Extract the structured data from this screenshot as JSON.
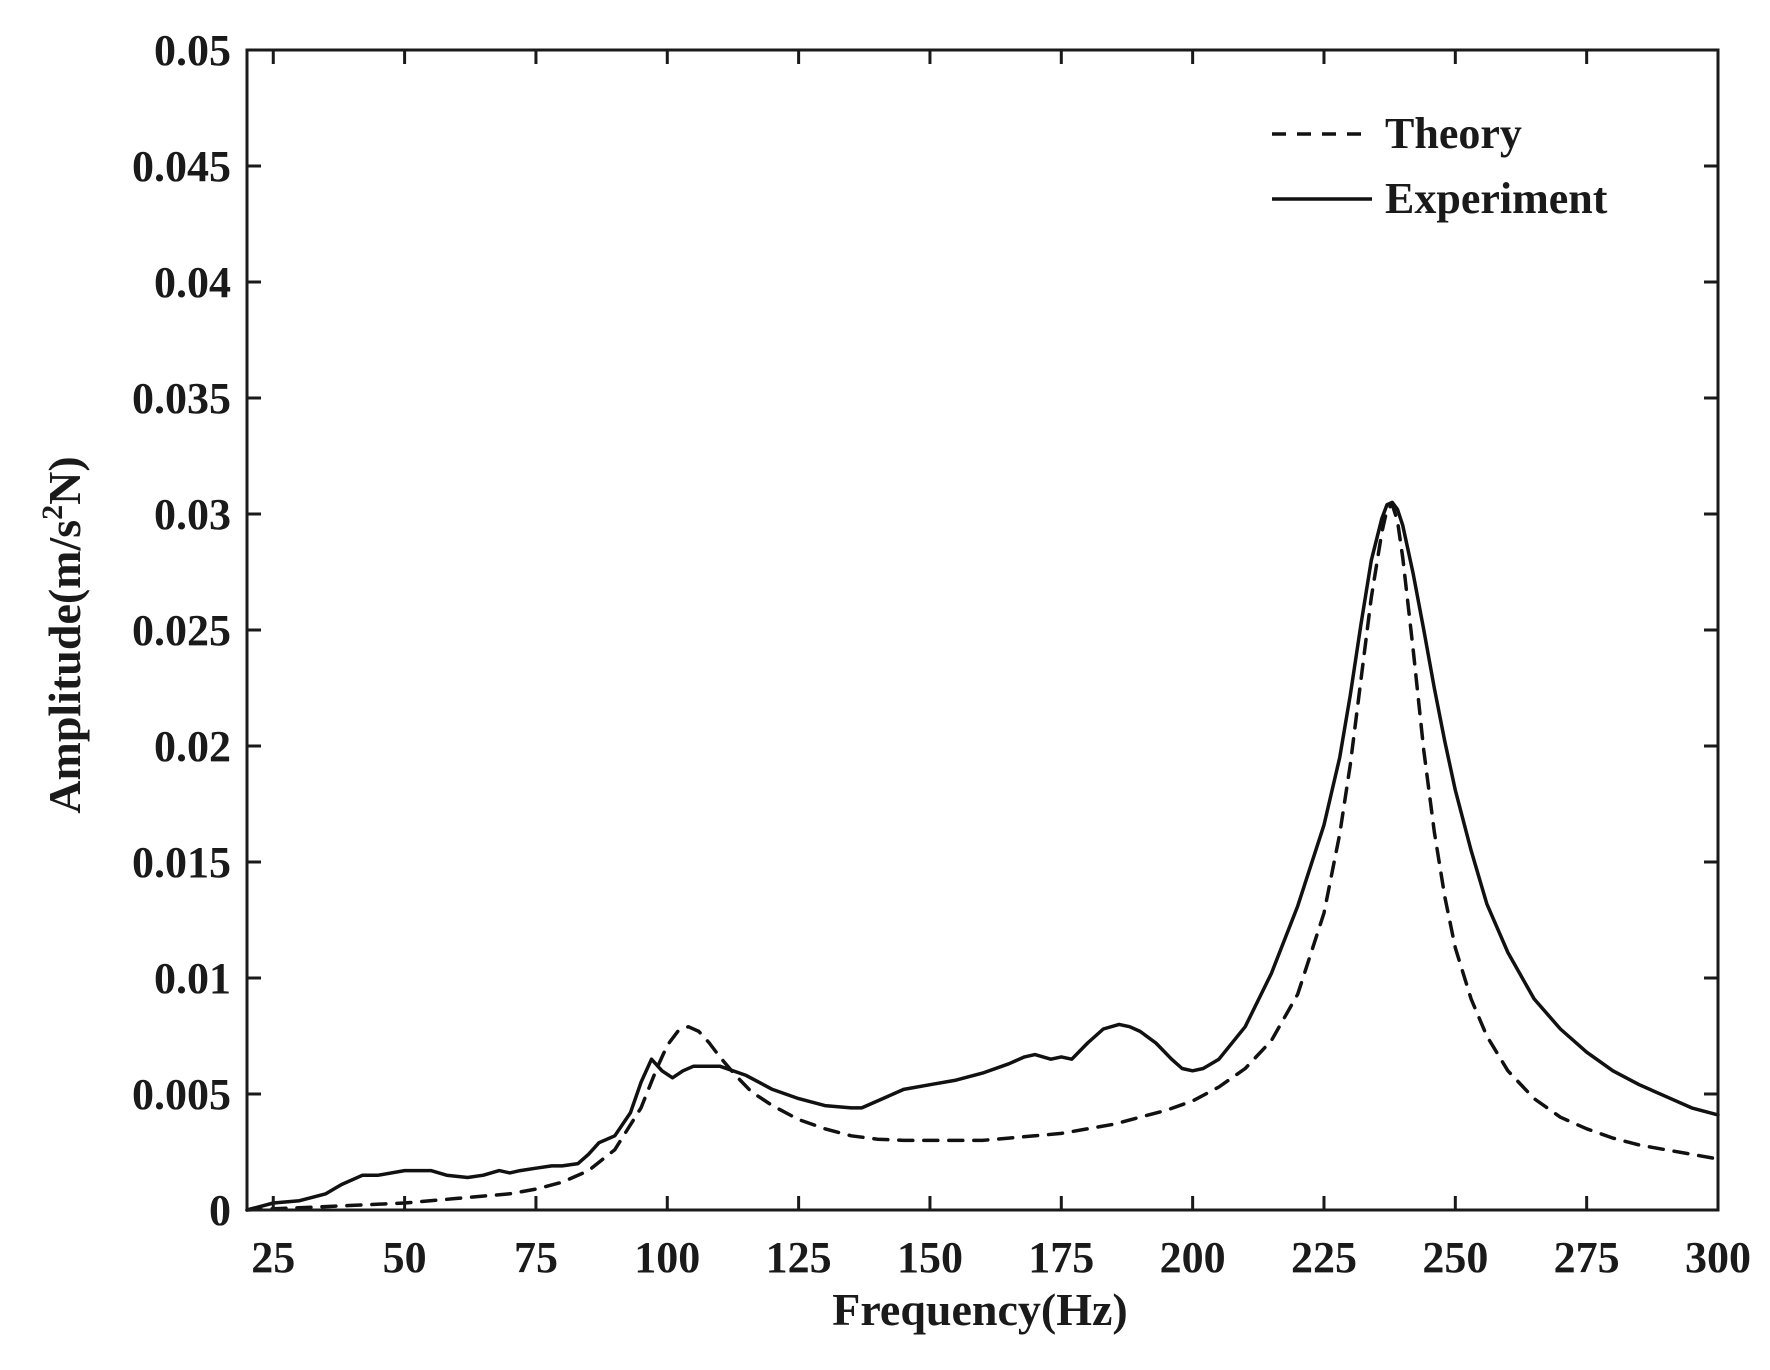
{
  "chart_data": {
    "type": "line",
    "xlabel": "Frequency(Hz)",
    "ylabel_main": "Amplitude(m/s",
    "ylabel_sup": "2",
    "ylabel_end": "N)",
    "xlim": [
      20,
      300
    ],
    "ylim": [
      0,
      0.05
    ],
    "xticks": [
      25,
      50,
      75,
      100,
      125,
      150,
      175,
      200,
      225,
      250,
      275,
      300
    ],
    "xtick_labels": [
      "25",
      "50",
      "75",
      "100",
      "125",
      "150",
      "175",
      "200",
      "225",
      "250",
      "275",
      "300"
    ],
    "yticks": [
      0,
      0.005,
      0.01,
      0.015,
      0.02,
      0.025,
      0.03,
      0.035,
      0.04,
      0.045,
      0.05
    ],
    "ytick_labels": [
      "0",
      "0.005",
      "0.01",
      "0.015",
      "0.02",
      "0.025",
      "0.03",
      "0.035",
      "0.04",
      "0.045",
      "0.05"
    ],
    "grid": false,
    "legend_position": "top-right",
    "series": [
      {
        "name": "Theory",
        "style": "dashed",
        "color": "#111111",
        "x": [
          20,
          30,
          40,
          50,
          60,
          70,
          75,
          80,
          85,
          90,
          95,
          98,
          100,
          102,
          104,
          106,
          108,
          110,
          113,
          116,
          120,
          125,
          130,
          135,
          140,
          145,
          150,
          155,
          160,
          165,
          170,
          175,
          180,
          185,
          190,
          195,
          200,
          205,
          210,
          215,
          220,
          225,
          228,
          230,
          232,
          234,
          236,
          237,
          238,
          239,
          240,
          242,
          244,
          246,
          248,
          250,
          253,
          256,
          260,
          265,
          270,
          275,
          280,
          285,
          290,
          295,
          300
        ],
        "y": [
          0.0,
          0.0001,
          0.0002,
          0.0003,
          0.0005,
          0.0007,
          0.0009,
          0.0012,
          0.0017,
          0.0026,
          0.0044,
          0.0061,
          0.0071,
          0.0077,
          0.0079,
          0.0077,
          0.0072,
          0.0066,
          0.0058,
          0.0051,
          0.0045,
          0.0039,
          0.0035,
          0.0032,
          0.00305,
          0.003,
          0.003,
          0.003,
          0.003,
          0.0031,
          0.0032,
          0.0033,
          0.0035,
          0.0037,
          0.004,
          0.0043,
          0.0047,
          0.0053,
          0.0061,
          0.0073,
          0.0093,
          0.0128,
          0.0162,
          0.0192,
          0.0228,
          0.0264,
          0.0292,
          0.0302,
          0.0304,
          0.0297,
          0.0281,
          0.0241,
          0.0198,
          0.0163,
          0.0135,
          0.0113,
          0.0091,
          0.0075,
          0.006,
          0.0048,
          0.004,
          0.0035,
          0.0031,
          0.0028,
          0.0026,
          0.0024,
          0.0022
        ]
      },
      {
        "name": "Experiment",
        "style": "solid",
        "color": "#111111",
        "x": [
          20,
          25,
          30,
          35,
          38,
          42,
          45,
          50,
          55,
          58,
          62,
          65,
          68,
          70,
          72,
          75,
          78,
          80,
          83,
          85,
          87,
          90,
          93,
          95,
          97,
          99,
          101,
          103,
          105,
          108,
          110,
          115,
          120,
          125,
          130,
          135,
          137,
          140,
          143,
          145,
          150,
          155,
          160,
          165,
          168,
          170,
          173,
          175,
          177,
          180,
          183,
          186,
          188,
          190,
          193,
          196,
          198,
          200,
          202,
          205,
          210,
          215,
          220,
          225,
          228,
          230,
          232,
          234,
          236,
          237,
          238,
          239,
          240,
          242,
          244,
          246,
          248,
          250,
          253,
          256,
          260,
          265,
          270,
          275,
          280,
          285,
          290,
          295,
          300
        ],
        "y": [
          0.0,
          0.0003,
          0.0004,
          0.0007,
          0.0011,
          0.0015,
          0.0015,
          0.0017,
          0.0017,
          0.0015,
          0.0014,
          0.0015,
          0.0017,
          0.0016,
          0.0017,
          0.0018,
          0.0019,
          0.0019,
          0.002,
          0.0024,
          0.0029,
          0.0032,
          0.0042,
          0.0055,
          0.0065,
          0.006,
          0.0057,
          0.006,
          0.0062,
          0.0062,
          0.0062,
          0.0058,
          0.0052,
          0.0048,
          0.0045,
          0.0044,
          0.0044,
          0.0047,
          0.005,
          0.0052,
          0.0054,
          0.0056,
          0.0059,
          0.0063,
          0.0066,
          0.0067,
          0.0065,
          0.0066,
          0.0065,
          0.0072,
          0.0078,
          0.008,
          0.0079,
          0.0077,
          0.0072,
          0.0065,
          0.0061,
          0.006,
          0.0061,
          0.0065,
          0.0079,
          0.0102,
          0.0131,
          0.0166,
          0.0195,
          0.0222,
          0.0252,
          0.028,
          0.0298,
          0.0304,
          0.0305,
          0.0302,
          0.0295,
          0.0274,
          0.025,
          0.0225,
          0.0202,
          0.0181,
          0.0155,
          0.0132,
          0.0111,
          0.0091,
          0.0078,
          0.0068,
          0.006,
          0.0054,
          0.0049,
          0.0044,
          0.0041
        ]
      }
    ]
  }
}
